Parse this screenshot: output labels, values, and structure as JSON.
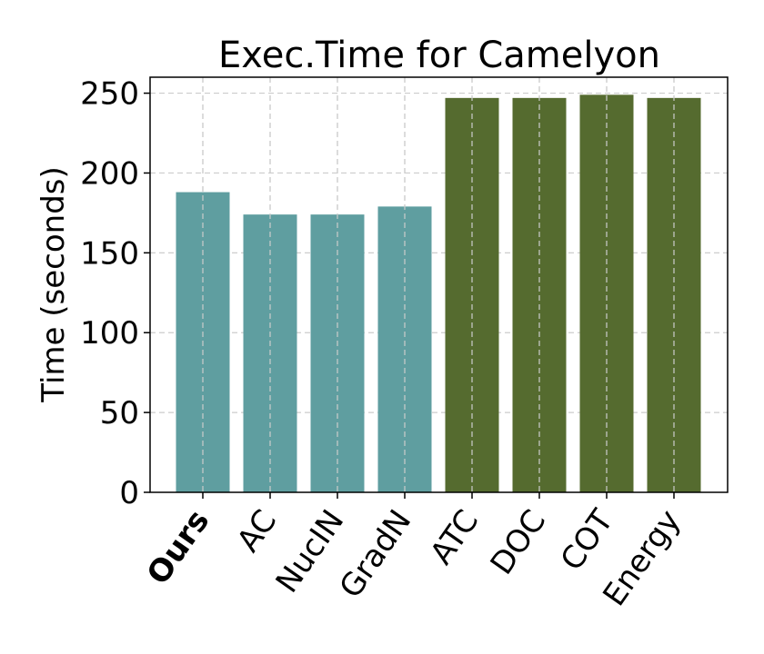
{
  "chart_data": {
    "type": "bar",
    "title": "Exec.Time for Camelyon",
    "xlabel": "",
    "ylabel": "Time (seconds)",
    "categories": [
      "Ours",
      "AC",
      "NucIN",
      "GradN",
      "ATC",
      "DOC",
      "COT",
      "Energy"
    ],
    "values": [
      188,
      174,
      174,
      179,
      247,
      247,
      249,
      247
    ],
    "bar_colors": [
      "#5f9ea0",
      "#5f9ea0",
      "#5f9ea0",
      "#5f9ea0",
      "#556b2f",
      "#556b2f",
      "#556b2f",
      "#556b2f"
    ],
    "bold_categories": [
      "Ours"
    ],
    "ylim": [
      0,
      260
    ],
    "yticks": [
      0,
      50,
      100,
      150,
      200,
      250
    ],
    "grid": true
  }
}
